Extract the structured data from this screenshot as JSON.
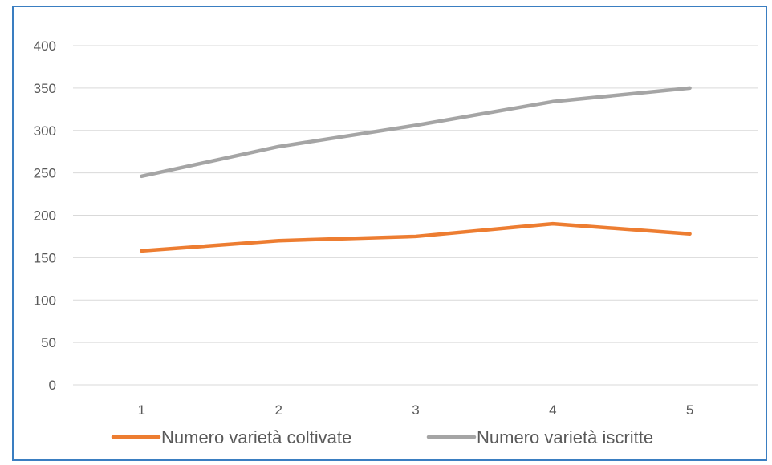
{
  "chart_data": {
    "type": "line",
    "categories": [
      "1",
      "2",
      "3",
      "4",
      "5"
    ],
    "series": [
      {
        "name": "Numero varietà coltivate",
        "values": [
          158,
          170,
          175,
          190,
          178
        ],
        "color": "#ed7d31"
      },
      {
        "name": "Numero varietà iscritte",
        "values": [
          246,
          281,
          306,
          334,
          350
        ],
        "color": "#a5a5a5"
      }
    ],
    "y_ticks": [
      "0",
      "50",
      "100",
      "150",
      "200",
      "250",
      "300",
      "350",
      "400"
    ],
    "ylim": [
      0,
      400
    ],
    "grid": true,
    "legend_position": "bottom",
    "title": "",
    "xlabel": "",
    "ylabel": ""
  }
}
